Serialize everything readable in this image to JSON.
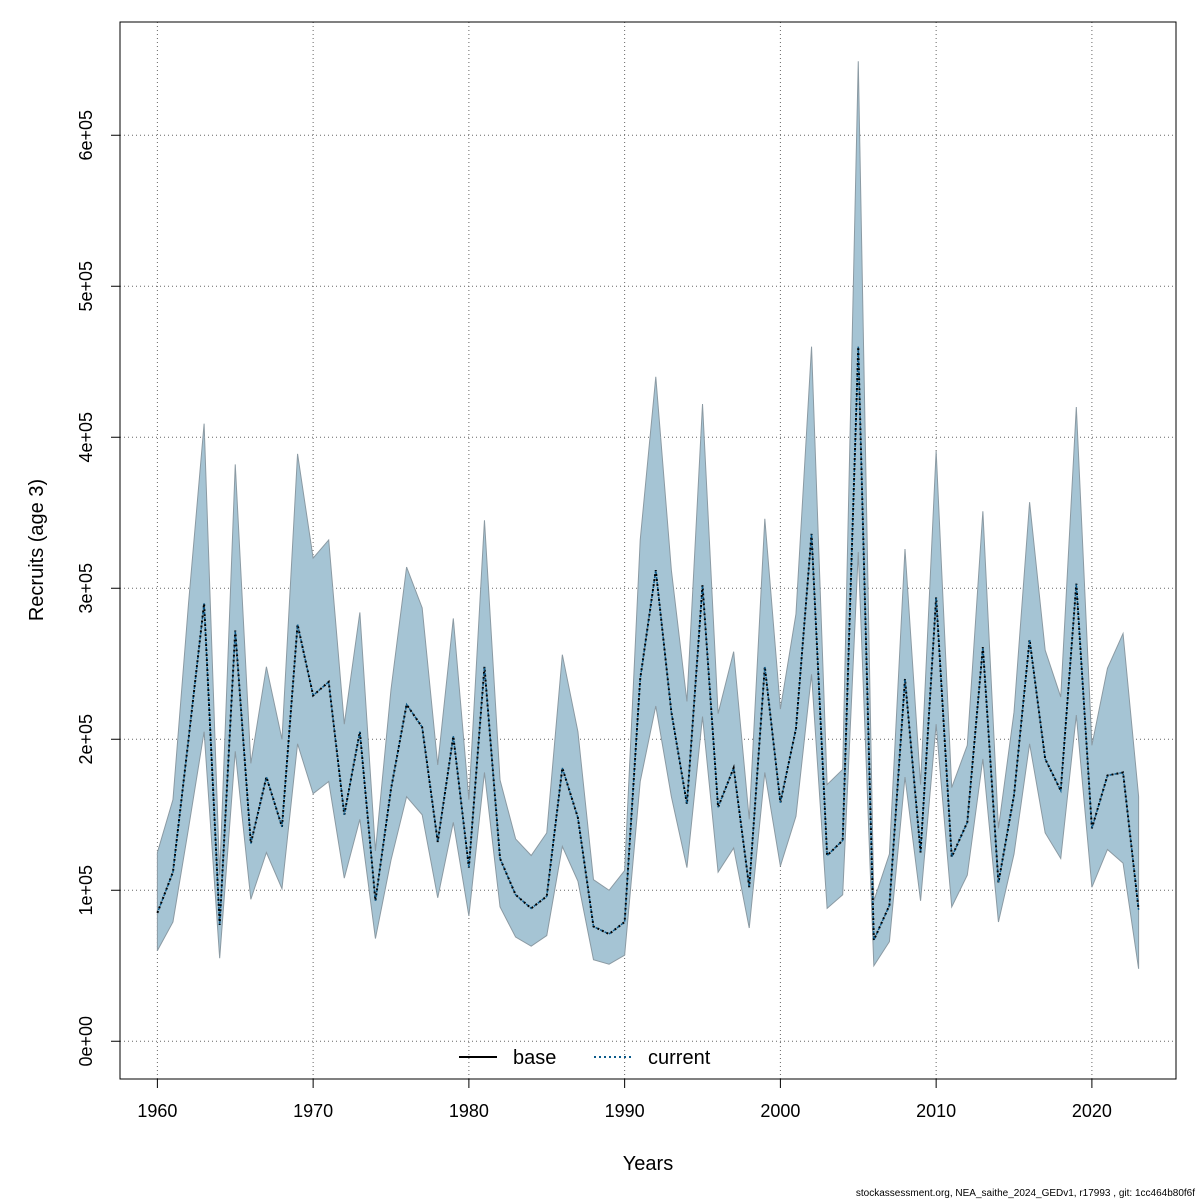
{
  "chart_data": {
    "type": "area",
    "xlabel": "Years",
    "ylabel": "Recruits (age 3)",
    "xlim": [
      1957.6,
      1925.4
    ],
    "ylim": [
      -25000,
      675000
    ],
    "xticks": [
      1960,
      1970,
      1980,
      1990,
      2000,
      2010,
      2020
    ],
    "xtick_labels": [
      "1960",
      "1970",
      "1980",
      "1990",
      "2000",
      "2010",
      "2020"
    ],
    "yticks": [
      0,
      100000,
      200000,
      300000,
      400000,
      500000,
      600000
    ],
    "ytick_labels": [
      "0e+00",
      "1e+05",
      "2e+05",
      "3e+05",
      "4e+05",
      "5e+05",
      "6e+05"
    ],
    "grid": true,
    "legend_position": "bottom-center",
    "legend": [
      {
        "label": "base",
        "style": "solid",
        "color": "#000000"
      },
      {
        "label": "current",
        "style": "dotted",
        "color": "#0b5a8a"
      }
    ],
    "band_color": "#a5c4d4",
    "band_edge_color": "#8b9aa3",
    "x": [
      1960,
      1961,
      1962,
      1963,
      1964,
      1965,
      1966,
      1967,
      1968,
      1969,
      1970,
      1971,
      1972,
      1973,
      1974,
      1975,
      1976,
      1977,
      1978,
      1979,
      1980,
      1981,
      1982,
      1983,
      1984,
      1985,
      1986,
      1987,
      1988,
      1989,
      1990,
      1991,
      1992,
      1993,
      1994,
      1995,
      1996,
      1997,
      1998,
      1999,
      2000,
      2001,
      2002,
      2003,
      2004,
      2005,
      2006,
      2007,
      2008,
      2009,
      2010,
      2011,
      2012,
      2013,
      2014,
      2015,
      2016,
      2017,
      2018,
      2019,
      2020,
      2021,
      2022,
      2023
    ],
    "series": [
      {
        "name": "current",
        "values": [
          85000,
          112000,
          200000,
          290000,
          77000,
          272000,
          131000,
          175000,
          142000,
          276000,
          229000,
          238000,
          150000,
          205000,
          93000,
          167000,
          223000,
          208000,
          132000,
          202000,
          115000,
          248000,
          121000,
          97000,
          88000,
          96000,
          181000,
          148000,
          76000,
          71000,
          79000,
          240000,
          312000,
          218000,
          157000,
          302000,
          155000,
          181000,
          102000,
          248000,
          158000,
          207000,
          336000,
          123000,
          133000,
          460000,
          67000,
          90000,
          240000,
          125000,
          294000,
          122000,
          145000,
          261000,
          105000,
          163000,
          266000,
          187000,
          166000,
          303000,
          141000,
          176000,
          178000,
          87000
        ]
      },
      {
        "name": "",
        "values": [
          85000,
          112000,
          200000,
          290000,
          77000,
          272000,
          131000,
          175000,
          142000,
          276000,
          229000,
          238000,
          150000,
          205000,
          93000,
          167000,
          223000,
          208000,
          132000,
          202000,
          115000,
          248000,
          121000,
          97000,
          88000,
          96000,
          181000,
          148000,
          76000,
          71000,
          79000,
          240000,
          312000,
          218000,
          157000,
          302000,
          155000,
          181000,
          102000,
          248000,
          158000,
          207000,
          336000,
          123000,
          133000,
          460000,
          67000,
          90000,
          240000,
          125000,
          294000,
          122000,
          145000,
          261000,
          105000,
          163000,
          266000,
          187000,
          166000,
          303000,
          141000,
          176000,
          178000,
          87000
        ]
      }
    ],
    "lower": [
      60000,
      79000,
      141000,
      205000,
      55000,
      192000,
      94000,
      125000,
      101000,
      197000,
      164000,
      172000,
      108000,
      147000,
      68000,
      120000,
      162000,
      150000,
      95000,
      145000,
      83000,
      178000,
      89000,
      69000,
      63000,
      70000,
      129000,
      106000,
      54000,
      51000,
      57000,
      172000,
      222000,
      162000,
      115000,
      215000,
      112000,
      128000,
      75000,
      178000,
      116000,
      149000,
      243000,
      88000,
      97000,
      324000,
      50000,
      66000,
      175000,
      93000,
      210000,
      89000,
      110000,
      187000,
      79000,
      124000,
      197000,
      138000,
      121000,
      216000,
      102000,
      127000,
      118000,
      48000
    ],
    "upper": [
      125000,
      160000,
      290000,
      409000,
      110000,
      382000,
      184000,
      248000,
      200000,
      389000,
      320000,
      332000,
      210000,
      284000,
      126000,
      233000,
      314000,
      287000,
      183000,
      280000,
      160000,
      345000,
      173000,
      134000,
      123000,
      138000,
      256000,
      205000,
      107000,
      100000,
      113000,
      332000,
      440000,
      312000,
      225000,
      422000,
      217000,
      258000,
      147000,
      346000,
      220000,
      283000,
      460000,
      170000,
      180000,
      649000,
      93000,
      124000,
      326000,
      170000,
      391000,
      168000,
      196000,
      351000,
      141000,
      218000,
      357000,
      259000,
      228000,
      420000,
      196000,
      247000,
      270000,
      162000
    ]
  },
  "footer": {
    "credit": "stockassessment.org, NEA_saithe_2024_GEDv1, r17993 , git: 1cc464b80f6f"
  }
}
